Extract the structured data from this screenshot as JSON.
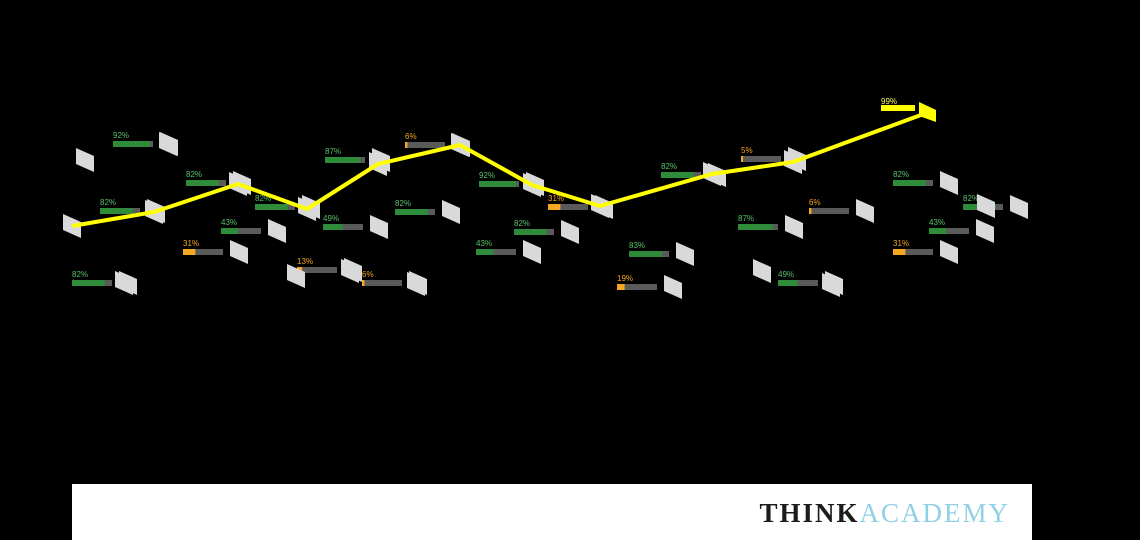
{
  "chart_data": {
    "type": "line",
    "title": "",
    "colors": {
      "line": "#ffff00",
      "high": "#2e8b3a",
      "low": "#f5a623",
      "track": "#5a5a5a",
      "card": "#d9d9d9",
      "label_high": "#57c46a",
      "label_low": "#f5a623",
      "label_top": "#ffff66"
    },
    "trend_line": {
      "name": "trend",
      "points": [
        0,
        1,
        2,
        3,
        4,
        5,
        6,
        7,
        8,
        9,
        10
      ],
      "end_label": "99%"
    },
    "bars": [
      {
        "label": "92%",
        "value": 92
      },
      {
        "label": "82%",
        "value": 82
      },
      {
        "label": "82%",
        "value": 82
      },
      {
        "label": "43%",
        "value": 43
      },
      {
        "label": "31%",
        "value": 31
      },
      {
        "label": "82%",
        "value": 82
      },
      {
        "label": "6%",
        "value": 6
      },
      {
        "label": "87%",
        "value": 87
      },
      {
        "label": "49%",
        "value": 49
      },
      {
        "label": "13%",
        "value": 13
      },
      {
        "label": "6%",
        "value": 6
      },
      {
        "label": "92%",
        "value": 92
      },
      {
        "label": "82%",
        "value": 82
      },
      {
        "label": "82%",
        "value": 82
      },
      {
        "label": "43%",
        "value": 43
      },
      {
        "label": "31%",
        "value": 31
      },
      {
        "label": "82%",
        "value": 82
      },
      {
        "label": "83%",
        "value": 83
      },
      {
        "label": "19%",
        "value": 19
      },
      {
        "label": "5%",
        "value": 5
      },
      {
        "label": "87%",
        "value": 87
      },
      {
        "label": "49%",
        "value": 49
      },
      {
        "label": "6%",
        "value": 6
      },
      {
        "label": "82%",
        "value": 82
      },
      {
        "label": "82%",
        "value": 82
      },
      {
        "label": "43%",
        "value": 43
      },
      {
        "label": "31%",
        "value": 31
      },
      {
        "label": "82%",
        "value": 82
      }
    ]
  },
  "footer": {
    "brand_think": "THINK",
    "brand_academy": "ACADEMY"
  }
}
